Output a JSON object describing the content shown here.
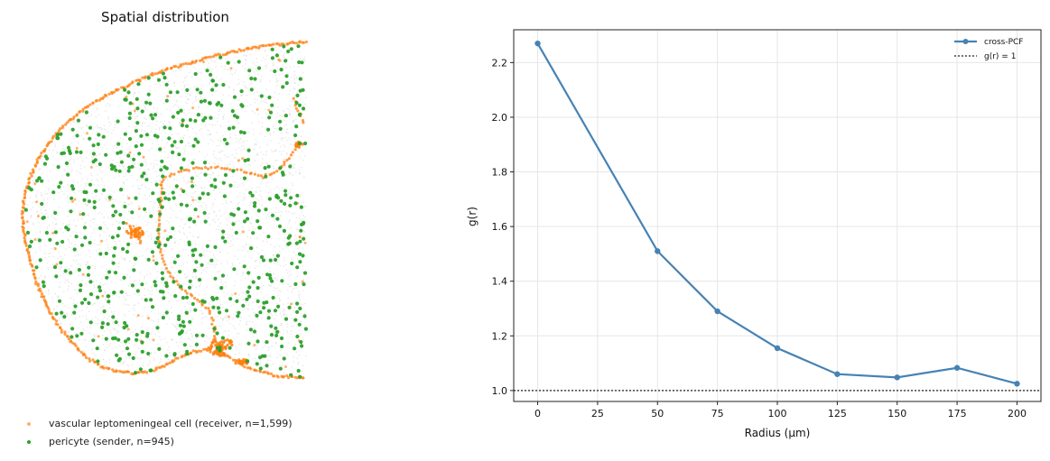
{
  "chart_data": [
    {
      "type": "scatter",
      "title": "Spatial distribution",
      "series": [
        {
          "name": "vascular leptomeningeal cell  (receiver, n=1,599)",
          "color": "#ff7f0e"
        },
        {
          "name": "pericyte  (sender, n=945)",
          "color": "#2ca02c"
        }
      ],
      "background_color": "#bdbdbd"
    },
    {
      "type": "line",
      "title": "",
      "xlabel": "Radius (µm)",
      "ylabel": "g(r)",
      "x": [
        0,
        25,
        50,
        75,
        100,
        125,
        150,
        175,
        200
      ],
      "x_ticks": [
        "0",
        "25",
        "50",
        "75",
        "100",
        "125",
        "150",
        "175",
        "200"
      ],
      "y_ticks": [
        "1.0",
        "1.2",
        "1.4",
        "1.6",
        "1.8",
        "2.0",
        "2.2"
      ],
      "xlim": [
        -10,
        210
      ],
      "ylim": [
        0.96,
        2.32
      ],
      "grid": true,
      "legend_position": "top-right",
      "series": [
        {
          "name": "cross-PCF",
          "color": "#4682b4",
          "x": [
            0,
            50,
            75,
            100,
            125,
            150,
            175,
            200
          ],
          "values": [
            2.27,
            1.51,
            1.29,
            1.155,
            1.06,
            1.048,
            1.083,
            1.025
          ]
        }
      ],
      "reference_line": {
        "name": "g(r) = 1",
        "y": 1.0,
        "color": "#444444"
      }
    }
  ]
}
